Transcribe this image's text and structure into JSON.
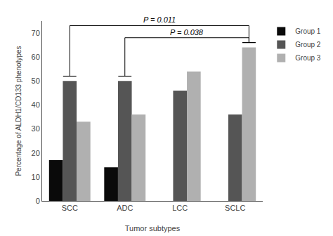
{
  "chart_data": {
    "type": "bar",
    "categories": [
      "SCC",
      "ADC",
      "LCC",
      "SCLC"
    ],
    "series": [
      {
        "name": "Group 1",
        "color": "#0a0a0a",
        "values": [
          17,
          14,
          0,
          0
        ]
      },
      {
        "name": "Group 2",
        "color": "#555555",
        "values": [
          50,
          50,
          46,
          36
        ]
      },
      {
        "name": "Group 3",
        "color": "#b0b0b0",
        "values": [
          33,
          36,
          54,
          64
        ]
      }
    ],
    "x_label": "Tumor subtypes",
    "y_label": "Percentage of ALDH1/CD133 phenotypes",
    "ylim": [
      0,
      75
    ],
    "yticks": [
      0,
      10,
      20,
      30,
      40,
      50,
      60,
      70
    ],
    "grid": false,
    "legend": "upper right",
    "annotations": [
      {
        "text": "P = 0.011",
        "from": [
          "SCC",
          "Group 2"
        ],
        "to": [
          "SCLC",
          "Group 3"
        ]
      },
      {
        "text": "P = 0.038",
        "from": [
          "ADC",
          "Group 2"
        ],
        "to": [
          "SCLC",
          "Group 3"
        ]
      }
    ]
  }
}
